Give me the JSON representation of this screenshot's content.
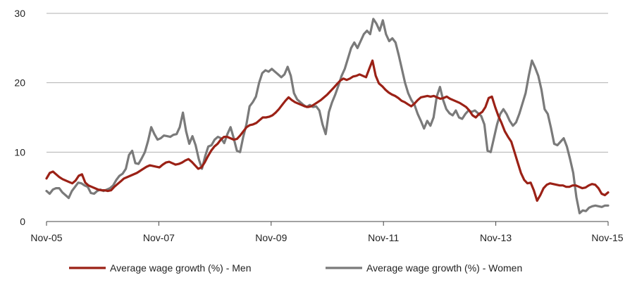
{
  "chart_data": {
    "type": "line",
    "title": "",
    "xlabel": "",
    "ylabel": "",
    "ylim": [
      0,
      30
    ],
    "yticks": [
      0,
      10,
      20,
      30
    ],
    "x_start": "Nov-05",
    "x_end": "Nov-15",
    "xticks": [
      "Nov-05",
      "Nov-07",
      "Nov-09",
      "Nov-11",
      "Nov-13",
      "Nov-15"
    ],
    "grid": "horizontal",
    "legend_position": "bottom",
    "series": [
      {
        "name": "Average wage growth (%) - Men",
        "color": "#9b2116",
        "values": [
          6.2,
          7.0,
          7.2,
          6.8,
          6.4,
          6.1,
          5.9,
          5.7,
          5.5,
          5.9,
          6.6,
          6.8,
          5.6,
          5.2,
          5.0,
          4.8,
          4.6,
          4.5,
          4.5,
          4.4,
          4.5,
          5.0,
          5.4,
          5.8,
          6.2,
          6.4,
          6.6,
          6.8,
          7.0,
          7.3,
          7.6,
          7.9,
          8.1,
          8.0,
          7.9,
          7.8,
          8.2,
          8.5,
          8.6,
          8.4,
          8.2,
          8.3,
          8.5,
          8.8,
          9.0,
          8.6,
          8.1,
          7.6,
          7.8,
          8.5,
          9.4,
          10.2,
          10.8,
          11.2,
          11.8,
          12.2,
          12.2,
          12.0,
          11.8,
          11.9,
          12.4,
          13.0,
          13.6,
          13.9,
          14.0,
          14.2,
          14.6,
          15.0,
          15.0,
          15.1,
          15.3,
          15.7,
          16.2,
          16.8,
          17.4,
          17.9,
          17.5,
          17.2,
          17.0,
          16.8,
          16.6,
          16.5,
          16.6,
          16.9,
          17.2,
          17.5,
          17.9,
          18.3,
          18.8,
          19.3,
          19.8,
          20.3,
          20.6,
          20.4,
          20.6,
          20.9,
          21.0,
          21.2,
          21.0,
          20.8,
          22.0,
          23.2,
          21.0,
          19.9,
          19.5,
          19.0,
          18.6,
          18.3,
          18.1,
          17.8,
          17.4,
          17.2,
          16.9,
          16.6,
          17.0,
          17.5,
          17.9,
          18.0,
          18.1,
          18.0,
          18.1,
          17.9,
          17.7,
          17.8,
          18.0,
          17.7,
          17.5,
          17.3,
          17.1,
          16.8,
          16.5,
          16.0,
          15.3,
          15.0,
          15.5,
          15.8,
          16.5,
          17.8,
          18.0,
          16.5,
          15.2,
          14.2,
          13.0,
          12.2,
          11.5,
          10.0,
          8.5,
          7.0,
          6.0,
          5.5,
          5.6,
          4.5,
          3.0,
          3.8,
          4.8,
          5.3,
          5.5,
          5.4,
          5.3,
          5.2,
          5.2,
          5.0,
          5.0,
          5.2,
          5.2,
          5.0,
          4.8,
          4.9,
          5.2,
          5.4,
          5.3,
          4.8,
          4.0,
          3.8,
          4.2
        ]
      },
      {
        "name": "Average wage growth (%) - Women",
        "color": "#7a7a7a",
        "values": [
          4.4,
          4.0,
          4.6,
          4.8,
          4.8,
          4.2,
          3.8,
          3.4,
          4.4,
          5.0,
          5.6,
          5.5,
          5.2,
          5.0,
          4.1,
          4.0,
          4.4,
          4.6,
          4.4,
          4.6,
          4.8,
          5.2,
          6.0,
          6.6,
          6.9,
          7.6,
          9.6,
          10.2,
          8.4,
          8.3,
          9.1,
          10.0,
          11.6,
          13.6,
          12.6,
          11.8,
          12.0,
          12.4,
          12.3,
          12.2,
          12.5,
          12.6,
          13.6,
          15.7,
          13.0,
          11.2,
          12.3,
          11.0,
          9.0,
          7.6,
          9.4,
          10.8,
          11.0,
          11.8,
          12.2,
          12.0,
          11.3,
          12.6,
          13.6,
          12.0,
          10.2,
          10.0,
          12.2,
          14.0,
          16.6,
          17.2,
          18.0,
          20.0,
          21.4,
          21.8,
          21.6,
          22.0,
          21.6,
          21.2,
          20.8,
          21.2,
          22.3,
          21.0,
          18.5,
          17.6,
          17.2,
          16.8,
          16.5,
          16.8,
          16.5,
          16.6,
          16.0,
          14.0,
          12.6,
          15.8,
          17.2,
          18.3,
          19.6,
          21.0,
          22.0,
          23.5,
          25.0,
          25.8,
          25.0,
          26.0,
          27.0,
          27.5,
          27.0,
          29.2,
          28.5,
          27.5,
          29.0,
          27.0,
          26.0,
          26.4,
          25.8,
          24.0,
          22.0,
          20.0,
          18.5,
          17.5,
          16.8,
          15.5,
          14.5,
          13.4,
          14.5,
          13.8,
          15.0,
          18.0,
          19.4,
          17.5,
          16.2,
          15.6,
          15.3,
          16.0,
          15.0,
          14.8,
          15.5,
          16.0,
          15.8,
          16.0,
          15.6,
          15.2,
          14.0,
          10.2,
          10.0,
          12.0,
          14.0,
          15.5,
          16.2,
          15.5,
          14.5,
          13.8,
          14.3,
          15.5,
          17.0,
          18.5,
          21.0,
          23.2,
          22.2,
          21.0,
          19.0,
          16.2,
          15.5,
          13.5,
          11.2,
          11.0,
          11.5,
          12.0,
          10.8,
          9.0,
          7.0,
          3.5,
          1.2,
          1.6,
          1.5,
          2.0,
          2.2,
          2.3,
          2.2,
          2.1,
          2.3,
          2.3
        ]
      }
    ]
  }
}
